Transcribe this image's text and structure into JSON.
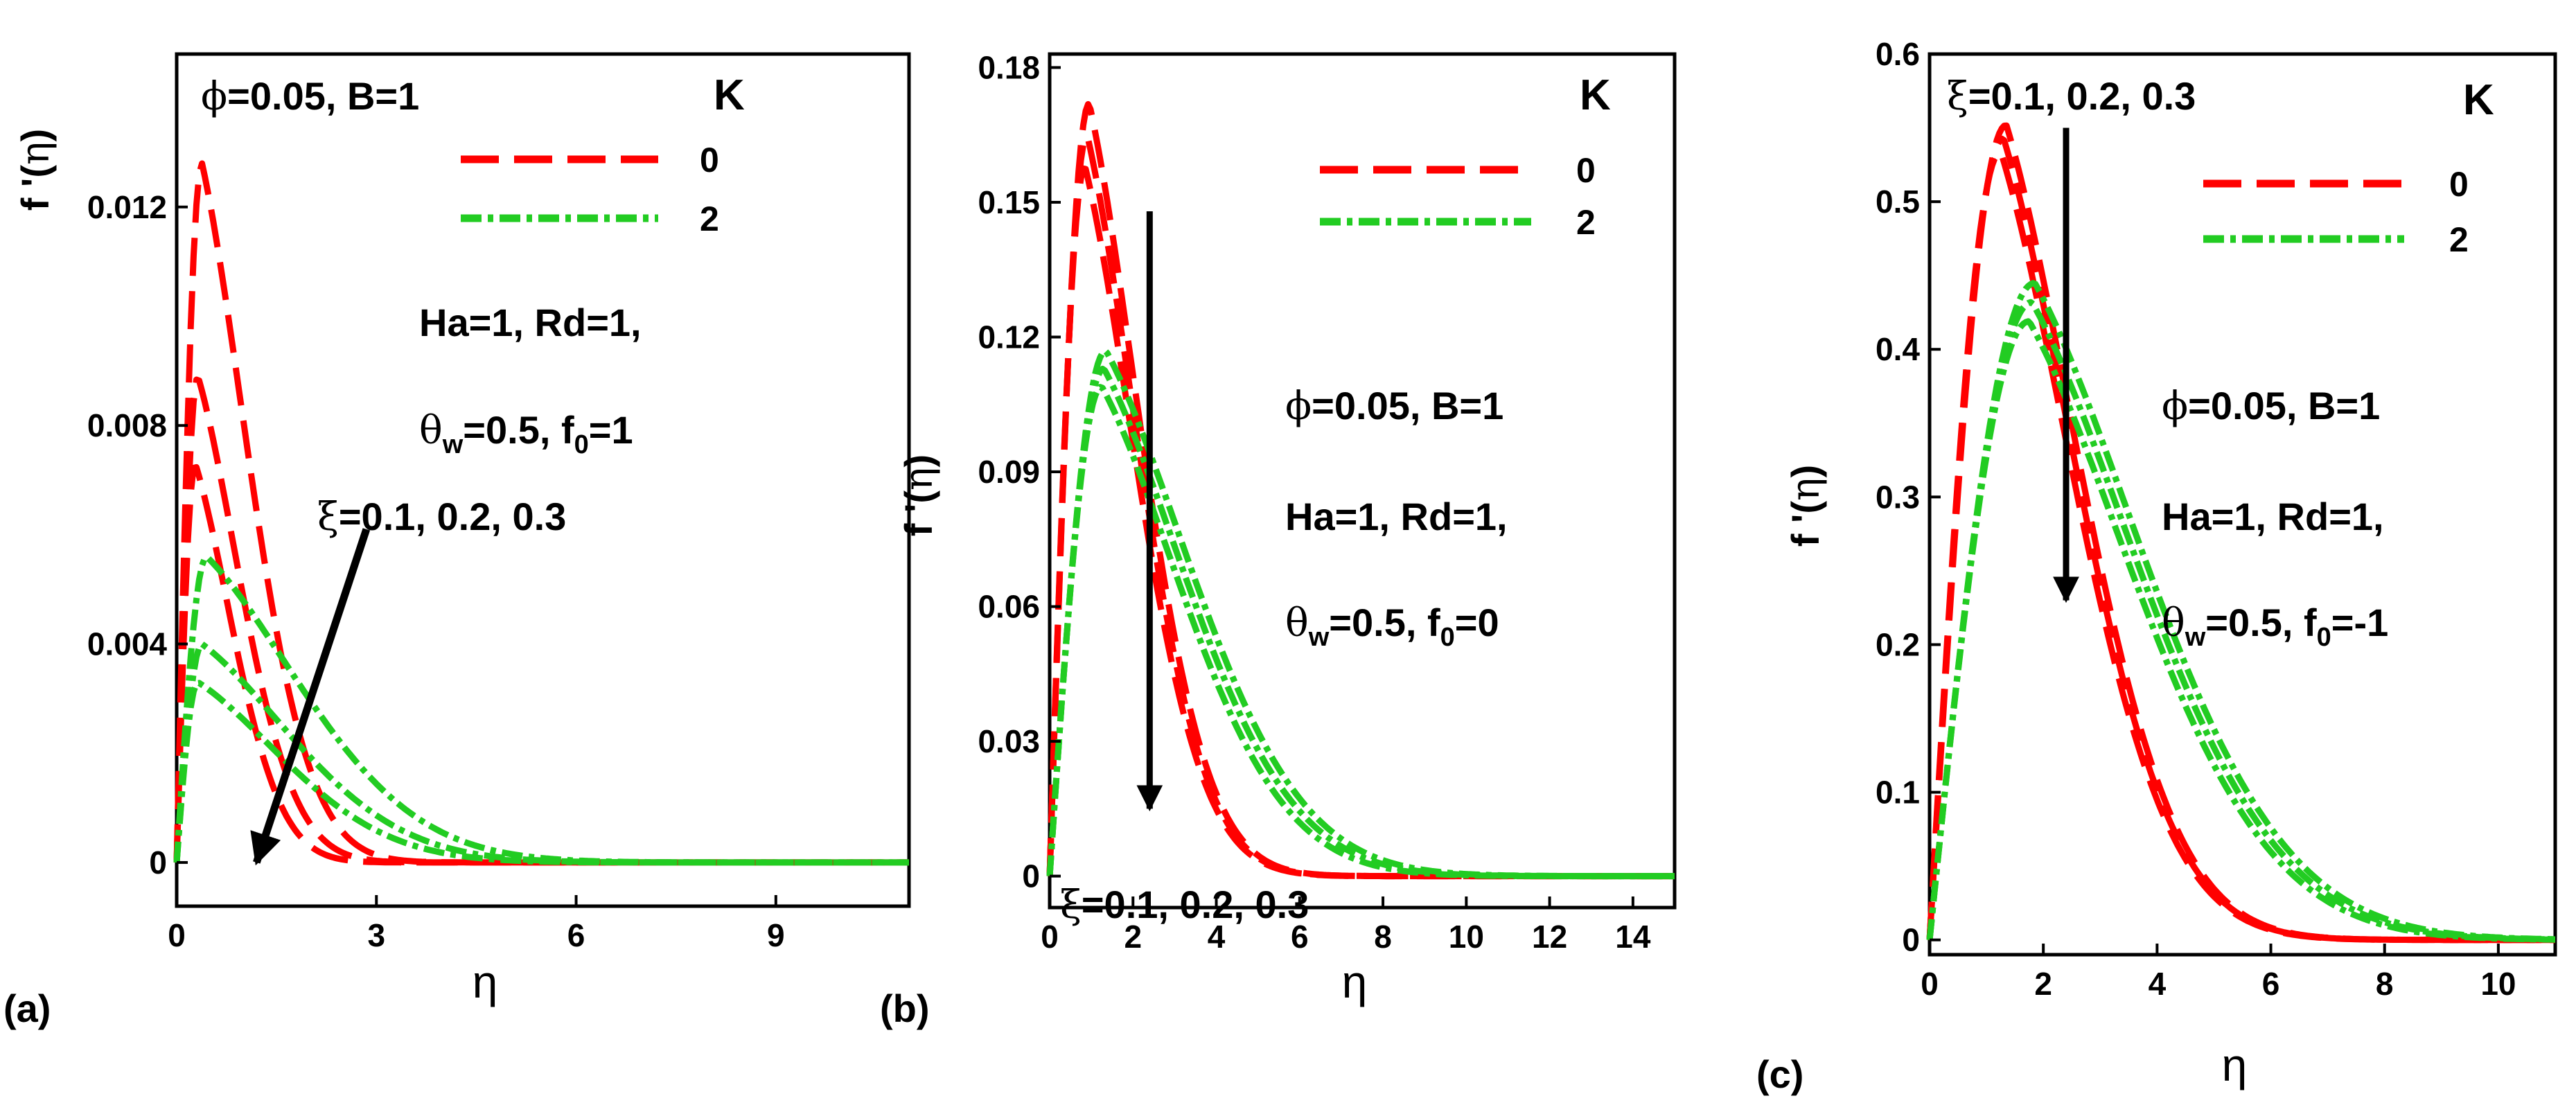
{
  "chart_data": [
    {
      "type": "line",
      "panel_label": "(a)",
      "xlabel": "η",
      "ylabel": "f '(η)",
      "xlim": [
        0,
        11
      ],
      "ylim": [
        -0.0008,
        0.0148
      ],
      "xticks": [
        "0",
        "3",
        "6",
        "9"
      ],
      "yticks": [
        "0",
        "0.004",
        "0.008",
        "0.012"
      ],
      "xtick_values": [
        0,
        3,
        6,
        9
      ],
      "ytick_values": [
        0,
        0.004,
        0.008,
        0.012
      ],
      "legend": {
        "title": "K",
        "entries": [
          "0",
          "2"
        ],
        "position": "top-right"
      },
      "annotations": [
        "ϕ=0.05, B=1",
        "Ha=1, Rd=1,",
        "θw=0.5, f0=1",
        "ξ=0.1, 0.2, 0.3"
      ],
      "arrow": {
        "from": [
          2.85,
          0.0061
        ],
        "to": [
          1.2,
          0.0
        ]
      },
      "series": [
        {
          "name": "K=0, ξ=0.1",
          "color": "#ff0000",
          "dash": "long",
          "peak_x": 0.38,
          "peak_y": 0.0128,
          "decay": 1.05
        },
        {
          "name": "K=0, ξ=0.2",
          "color": "#ff0000",
          "dash": "long",
          "peak_x": 0.32,
          "peak_y": 0.0089,
          "decay": 0.95
        },
        {
          "name": "K=0, ξ=0.3",
          "color": "#ff0000",
          "dash": "long",
          "peak_x": 0.28,
          "peak_y": 0.0073,
          "decay": 0.85
        },
        {
          "name": "K=2, ξ=0.1",
          "color": "#22cc22",
          "dash": "dashdot",
          "peak_x": 0.45,
          "peak_y": 0.0056,
          "decay": 2.1
        },
        {
          "name": "K=2, ξ=0.2",
          "color": "#22cc22",
          "dash": "dashdot",
          "peak_x": 0.38,
          "peak_y": 0.004,
          "decay": 2.0
        },
        {
          "name": "K=2, ξ=0.3",
          "color": "#22cc22",
          "dash": "dashdot",
          "peak_x": 0.32,
          "peak_y": 0.0033,
          "decay": 1.9
        }
      ]
    },
    {
      "type": "line",
      "panel_label": "(b)",
      "xlabel": "η",
      "ylabel": "f '(η)",
      "xlim": [
        0,
        15
      ],
      "ylim": [
        -0.007,
        0.183
      ],
      "xticks": [
        "0",
        "2",
        "4",
        "6",
        "8",
        "10",
        "12",
        "14"
      ],
      "yticks": [
        "0",
        "0.03",
        "0.06",
        "0.09",
        "0.12",
        "0.15",
        "0.18"
      ],
      "xtick_values": [
        0,
        2,
        4,
        6,
        8,
        10,
        12,
        14
      ],
      "ytick_values": [
        0,
        0.03,
        0.06,
        0.09,
        0.12,
        0.15,
        0.18
      ],
      "legend": {
        "title": "K",
        "entries": [
          "0",
          "2"
        ],
        "position": "top-right"
      },
      "annotations": [
        "ϕ=0.05, B=1",
        "Ha=1, Rd=1,",
        "θw=0.5, f0=0",
        "ξ=0.1, 0.2, 0.3"
      ],
      "arrow": {
        "from": [
          2.4,
          0.148
        ],
        "to": [
          2.4,
          0.015
        ]
      },
      "series": [
        {
          "name": "K=0, ξ=0.1",
          "color": "#ff0000",
          "dash": "long",
          "peak_x": 0.95,
          "peak_y": 0.172,
          "decay": 1.85
        },
        {
          "name": "K=0, ξ=0.2",
          "color": "#ff0000",
          "dash": "long",
          "peak_x": 0.9,
          "peak_y": 0.165,
          "decay": 1.85
        },
        {
          "name": "K=0, ξ=0.3",
          "color": "#ff0000",
          "dash": "long",
          "peak_x": 0.85,
          "peak_y": 0.158,
          "decay": 1.85
        },
        {
          "name": "K=2, ξ=0.1",
          "color": "#22cc22",
          "dash": "dashdot",
          "peak_x": 1.35,
          "peak_y": 0.117,
          "decay": 3.1
        },
        {
          "name": "K=2, ξ=0.2",
          "color": "#22cc22",
          "dash": "dashdot",
          "peak_x": 1.3,
          "peak_y": 0.113,
          "decay": 3.0
        },
        {
          "name": "K=2, ξ=0.3",
          "color": "#22cc22",
          "dash": "dashdot",
          "peak_x": 1.25,
          "peak_y": 0.109,
          "decay": 2.9
        }
      ]
    },
    {
      "type": "line",
      "panel_label": "(c)",
      "xlabel": "η",
      "ylabel": "f '(η)",
      "xlim": [
        0,
        11
      ],
      "ylim": [
        -0.01,
        0.6
      ],
      "xticks": [
        "0",
        "2",
        "4",
        "6",
        "8",
        "10"
      ],
      "yticks": [
        "0",
        "0.1",
        "0.2",
        "0.3",
        "0.4",
        "0.5",
        "0.6"
      ],
      "xtick_values": [
        0,
        2,
        4,
        6,
        8,
        10
      ],
      "ytick_values": [
        0,
        0.1,
        0.2,
        0.3,
        0.4,
        0.5,
        0.6
      ],
      "legend": {
        "title": "K",
        "entries": [
          "0",
          "2"
        ],
        "position": "top-right"
      },
      "annotations": [
        "ξ=0.1, 0.2, 0.3",
        "ϕ=0.05, B=1",
        "Ha=1, Rd=1,",
        "θw=0.5, f0=-1"
      ],
      "arrow": {
        "from": [
          2.4,
          0.55
        ],
        "to": [
          2.4,
          0.23
        ]
      },
      "series": [
        {
          "name": "K=0, ξ=0.1",
          "color": "#ff0000",
          "dash": "long",
          "peak_x": 1.35,
          "peak_y": 0.552,
          "decay": 1.95
        },
        {
          "name": "K=0, ξ=0.2",
          "color": "#ff0000",
          "dash": "long",
          "peak_x": 1.3,
          "peak_y": 0.543,
          "decay": 1.95
        },
        {
          "name": "K=0, ξ=0.3",
          "color": "#ff0000",
          "dash": "long",
          "peak_x": 1.25,
          "peak_y": 0.534,
          "decay": 1.95
        },
        {
          "name": "K=2, ξ=0.1",
          "color": "#22cc22",
          "dash": "dashdot",
          "peak_x": 1.85,
          "peak_y": 0.445,
          "decay": 2.9
        },
        {
          "name": "K=2, ξ=0.2",
          "color": "#22cc22",
          "dash": "dashdot",
          "peak_x": 1.8,
          "peak_y": 0.432,
          "decay": 2.85
        },
        {
          "name": "K=2, ξ=0.3",
          "color": "#22cc22",
          "dash": "dashdot",
          "peak_x": 1.75,
          "peak_y": 0.419,
          "decay": 2.8
        }
      ]
    }
  ]
}
